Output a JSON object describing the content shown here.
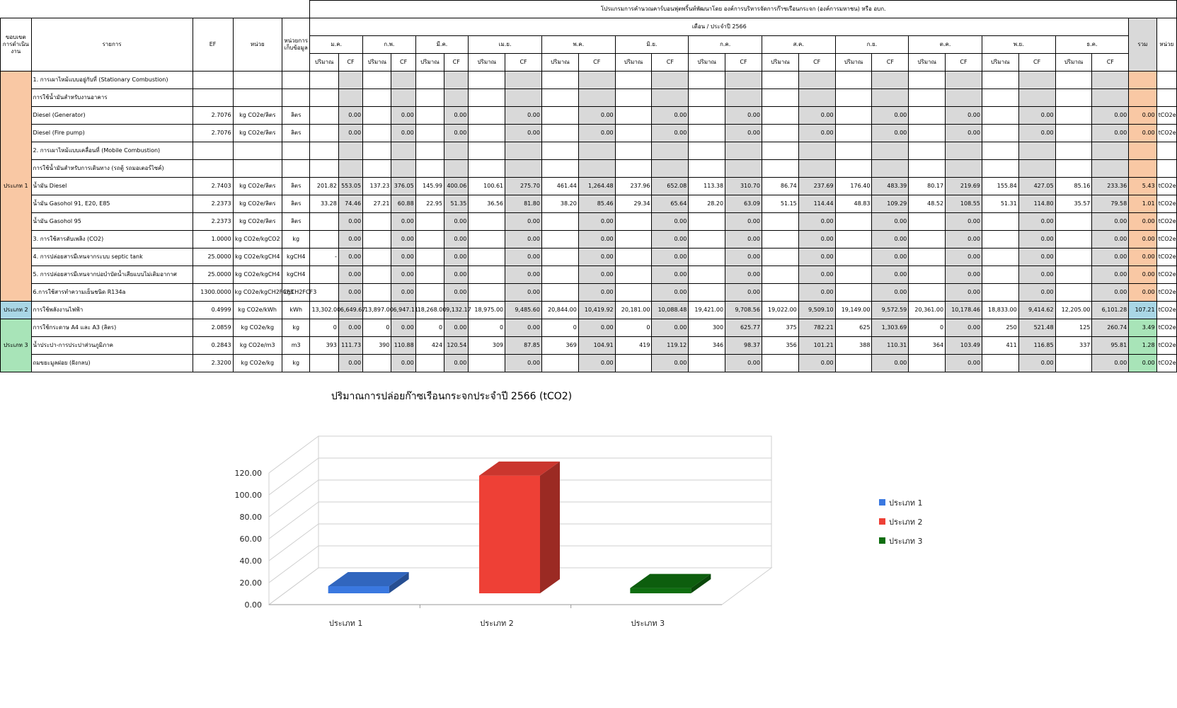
{
  "sheet": {
    "banner": "โปรแกรมการคำนวณคาร์บอนฟุตพริ้นท์พัฒนาโดย องค์การบริหารจัดการก๊าซเรือนกระจก (องค์การมหาชน) หรือ อบก.",
    "headers": {
      "scope": "ขอบเขตการดำเนินงาน",
      "item": "รายการ",
      "ef": "EF",
      "unit": "หน่วย",
      "collect_unit": "หน่วยการเก็บข้อมูล",
      "period": "เดือน / ประจำปี 2566",
      "total": "รวม",
      "unit_right": "หน่วย",
      "qty": "ปริมาณ",
      "cf": "CF"
    },
    "months": [
      "ม.ค.",
      "ก.พ.",
      "มี.ค.",
      "เม.ย.",
      "พ.ค.",
      "มิ.ย.",
      "ก.ค.",
      "ส.ค.",
      "ก.ย.",
      "ต.ค.",
      "พ.ย.",
      "ธ.ค."
    ],
    "scopes": {
      "s1": "ประเภท 1",
      "s2": "ประเภท 2",
      "s3": "ประเภท 3"
    },
    "rows": [
      {
        "item": "1. การเผาไหม้แบบอยู่กับที่ (Stationary Combustion)",
        "ef": "",
        "unit": "",
        "cu": "",
        "total": "",
        "tu": "",
        "section": true
      },
      {
        "item": "การใช้น้ำมันสำหรับงานอาคาร",
        "ef": "",
        "unit": "",
        "cu": "",
        "total": "",
        "tu": "",
        "section": true
      },
      {
        "item": "Diesel (Generator)",
        "ef": "2.7076",
        "unit": "kg CO2e/ลิตร",
        "cu": "ลิตร",
        "qty": [
          "",
          "",
          "",
          "",
          "",
          "",
          "",
          "",
          "",
          "",
          "",
          ""
        ],
        "cf": [
          "0.00",
          "0.00",
          "0.00",
          "0.00",
          "0.00",
          "0.00",
          "0.00",
          "0.00",
          "0.00",
          "0.00",
          "0.00",
          "0.00"
        ],
        "total": "0.00",
        "tu": "tCO2e"
      },
      {
        "item": "Diesel (Fire pump)",
        "ef": "2.7076",
        "unit": "kg CO2e/ลิตร",
        "cu": "ลิตร",
        "qty": [
          "",
          "",
          "",
          "",
          "",
          "",
          "",
          "",
          "",
          "",
          "",
          ""
        ],
        "cf": [
          "0.00",
          "0.00",
          "0.00",
          "0.00",
          "0.00",
          "0.00",
          "0.00",
          "0.00",
          "0.00",
          "0.00",
          "0.00",
          "0.00"
        ],
        "total": "0.00",
        "tu": "tCO2e"
      },
      {
        "item": "2. การเผาไหม้แบบเคลื่อนที่ (Mobile Combustion)",
        "ef": "",
        "unit": "",
        "cu": "",
        "total": "",
        "tu": "",
        "section": true
      },
      {
        "item": "การใช้น้ำมันสำหรับการเดินทาง (รถตู้ รถมอเตอร์ไซค์)",
        "ef": "",
        "unit": "",
        "cu": "",
        "total": "",
        "tu": "",
        "section": true
      },
      {
        "item": "น้ำมัน Diesel",
        "ef": "2.7403",
        "unit": "kg CO2e/ลิตร",
        "cu": "ลิตร",
        "qty": [
          "201.82",
          "137.23",
          "145.99",
          "100.61",
          "461.44",
          "237.96",
          "113.38",
          "86.74",
          "176.40",
          "80.17",
          "155.84",
          "85.16"
        ],
        "cf": [
          "553.05",
          "376.05",
          "400.06",
          "275.70",
          "1,264.48",
          "652.08",
          "310.70",
          "237.69",
          "483.39",
          "219.69",
          "427.05",
          "233.36"
        ],
        "total": "5.43",
        "tu": "tCO2e"
      },
      {
        "item": "น้ำมัน Gasohol 91, E20, E85",
        "ef": "2.2373",
        "unit": "kg CO2e/ลิตร",
        "cu": "ลิตร",
        "qty": [
          "33.28",
          "27.21",
          "22.95",
          "36.56",
          "38.20",
          "29.34",
          "28.20",
          "51.15",
          "48.83",
          "48.52",
          "51.31",
          "35.57"
        ],
        "cf": [
          "74.46",
          "60.88",
          "51.35",
          "81.80",
          "85.46",
          "65.64",
          "63.09",
          "114.44",
          "109.29",
          "108.55",
          "114.80",
          "79.58"
        ],
        "total": "1.01",
        "tu": "tCO2e"
      },
      {
        "item": "น้ำมัน Gasohol 95",
        "ef": "2.2373",
        "unit": "kg CO2e/ลิตร",
        "cu": "ลิตร",
        "qty": [
          "",
          "",
          "",
          "",
          "",
          "",
          "",
          "",
          "",
          "",
          "",
          ""
        ],
        "cf": [
          "0.00",
          "0.00",
          "0.00",
          "0.00",
          "0.00",
          "0.00",
          "0.00",
          "0.00",
          "0.00",
          "0.00",
          "0.00",
          "0.00"
        ],
        "total": "0.00",
        "tu": "tCO2e"
      },
      {
        "item": "3. การใช้สารดับเพลิง (CO2)",
        "ef": "1.0000",
        "unit": "kg CO2e/kgCO2",
        "cu": "kg",
        "qty": [
          "",
          "",
          "",
          "",
          "",
          "",
          "",
          "",
          "",
          "",
          "",
          ""
        ],
        "cf": [
          "0.00",
          "0.00",
          "0.00",
          "0.00",
          "0.00",
          "0.00",
          "0.00",
          "0.00",
          "0.00",
          "0.00",
          "0.00",
          "0.00"
        ],
        "total": "0.00",
        "tu": "tCO2e"
      },
      {
        "item": "4. การปล่อยสารมีเทนจากระบบ septic tank",
        "ef": "25.0000",
        "unit": "kg CO2e/kgCH4",
        "cu": "kgCH4",
        "qty": [
          "-",
          "",
          "",
          "",
          "",
          "",
          "",
          "",
          "",
          "",
          "",
          ""
        ],
        "cf": [
          "0.00",
          "0.00",
          "0.00",
          "0.00",
          "0.00",
          "0.00",
          "0.00",
          "0.00",
          "0.00",
          "0.00",
          "0.00",
          "0.00"
        ],
        "total": "0.00",
        "tu": "tCO2e"
      },
      {
        "item": "5. การปล่อยสารมีเทนจากบ่อบำบัดน้ำเสียแบบไม่เติมอากาศ",
        "ef": "25.0000",
        "unit": "kg CO2e/kgCH4",
        "cu": "kgCH4",
        "qty": [
          "",
          "",
          "",
          "",
          "",
          "",
          "",
          "",
          "",
          "",
          "",
          ""
        ],
        "cf": [
          "0.00",
          "0.00",
          "0.00",
          "0.00",
          "0.00",
          "0.00",
          "0.00",
          "0.00",
          "0.00",
          "0.00",
          "0.00",
          "0.00"
        ],
        "total": "0.00",
        "tu": "tCO2e"
      },
      {
        "item": "6.การใช้สารทำความเย็นชนิด R134a",
        "ef": "1300.0000",
        "unit": "kg CO2e/kgCH2FCF3",
        "cu": "kgCH2FCF3",
        "qty": [
          "",
          "",
          "",
          "",
          "",
          "",
          "",
          "",
          "",
          "",
          "",
          ""
        ],
        "cf": [
          "0.00",
          "0.00",
          "0.00",
          "0.00",
          "0.00",
          "0.00",
          "0.00",
          "0.00",
          "0.00",
          "0.00",
          "0.00",
          "0.00"
        ],
        "total": "0.00",
        "tu": "tCO2e"
      },
      {
        "item": "การใช้พลังงานไฟฟ้า",
        "ef": "0.4999",
        "unit": "kg CO2e/kWh",
        "cu": "kWh",
        "qty": [
          "13,302.00",
          "13,897.00",
          "18,268.00",
          "18,975.00",
          "20,844.00",
          "20,181.00",
          "19,421.00",
          "19,022.00",
          "19,149.00",
          "20,361.00",
          "18,833.00",
          "12,205.00"
        ],
        "cf": [
          "6,649.67",
          "6,947.11",
          "9,132.17",
          "9,485.60",
          "10,419.92",
          "10,088.48",
          "9,708.56",
          "9,509.10",
          "9,572.59",
          "10,178.46",
          "9,414.62",
          "6,101.28"
        ],
        "total": "107.21",
        "tu": "tCO2e"
      },
      {
        "item": "การใช้กระดาษ A4 และ A3 (ลิตร)",
        "ef": "2.0859",
        "unit": "kg CO2e/kg",
        "cu": "kg",
        "qty": [
          "0",
          "0",
          "0",
          "0",
          "0",
          "0",
          "300",
          "375",
          "625",
          "0",
          "250",
          "125"
        ],
        "cf": [
          "0.00",
          "0.00",
          "0.00",
          "0.00",
          "0.00",
          "0.00",
          "625.77",
          "782.21",
          "1,303.69",
          "0.00",
          "521.48",
          "260.74"
        ],
        "total": "3.49",
        "tu": "tCO2e"
      },
      {
        "item": "น้ำประปา-การประปาส่วนภูมิภาค",
        "ef": "0.2843",
        "unit": "kg CO2e/m3",
        "cu": "m3",
        "qty": [
          "393",
          "390",
          "424",
          "309",
          "369",
          "419",
          "346",
          "356",
          "388",
          "364",
          "411",
          "337"
        ],
        "cf": [
          "111.73",
          "110.88",
          "120.54",
          "87.85",
          "104.91",
          "119.12",
          "98.37",
          "101.21",
          "110.31",
          "103.49",
          "116.85",
          "95.81"
        ],
        "total": "1.28",
        "tu": "tCO2e"
      },
      {
        "item": "ถมขยะมูลฝอย (ฝังกลบ)",
        "ef": "2.3200",
        "unit": "kg CO2e/kg",
        "cu": "kg",
        "qty": [
          "",
          "",
          "",
          "",
          "",
          "",
          "",
          "",
          "",
          "",
          "",
          ""
        ],
        "cf": [
          "0.00",
          "0.00",
          "0.00",
          "0.00",
          "0.00",
          "0.00",
          "0.00",
          "0.00",
          "0.00",
          "0.00",
          "0.00",
          "0.00"
        ],
        "total": "0.00",
        "tu": "tCO2e"
      }
    ]
  },
  "chart_data": {
    "type": "bar",
    "title": "ปริมาณการปล่อยก๊าซเรือนกระจกประจำปี 2566 (tCO2)",
    "categories": [
      "ประเภท 1",
      "ประเภท 2",
      "ประเภท 3"
    ],
    "values": [
      6.44,
      107.21,
      4.77
    ],
    "colors": [
      "#3a78e0",
      "#ee4036",
      "#0f6e10"
    ],
    "ylim": [
      0,
      120
    ],
    "yticks": [
      "0.00",
      "20.00",
      "40.00",
      "60.00",
      "80.00",
      "100.00",
      "120.00"
    ],
    "legend": [
      "ประเภท 1",
      "ประเภท 2",
      "ประเภท 3"
    ],
    "legend_position": "right",
    "grid": true
  }
}
